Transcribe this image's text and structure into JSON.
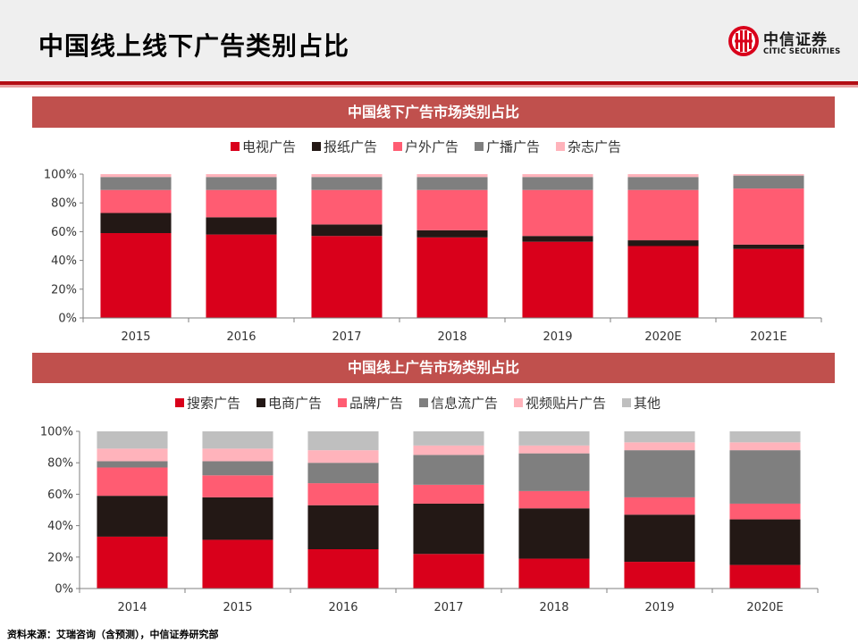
{
  "header": {
    "title": "中国线上线下广告类别占比",
    "logo_name": "中信证券",
    "logo_sub": "CITIC SECURITIES"
  },
  "chart_data": [
    {
      "type": "bar",
      "stacked": true,
      "title": "中国线下广告市场类别占比",
      "legend_placement": "top",
      "categories": [
        "2015",
        "2016",
        "2017",
        "2018",
        "2019",
        "2020E",
        "2021E"
      ],
      "yticks": [
        "0%",
        "20%",
        "40%",
        "60%",
        "80%",
        "100%"
      ],
      "ylim": [
        0,
        100
      ],
      "series": [
        {
          "name": "电视广告",
          "color": "#d9001b",
          "values": [
            59,
            58,
            57,
            56,
            53,
            50,
            48
          ]
        },
        {
          "name": "报纸广告",
          "color": "#231815",
          "values": [
            14,
            12,
            8,
            5,
            4,
            4,
            3
          ]
        },
        {
          "name": "户外广告",
          "color": "#ff5c72",
          "values": [
            16,
            19,
            24,
            28,
            32,
            35,
            39
          ]
        },
        {
          "name": "广播广告",
          "color": "#7f7f7f",
          "values": [
            9,
            9,
            9,
            9,
            9,
            9,
            9
          ]
        },
        {
          "name": "杂志广告",
          "color": "#ffb3bb",
          "values": [
            2,
            2,
            2,
            2,
            2,
            2,
            1
          ]
        }
      ]
    },
    {
      "type": "bar",
      "stacked": true,
      "title": "中国线上广告市场类别占比",
      "legend_placement": "top",
      "categories": [
        "2014",
        "2015",
        "2016",
        "2017",
        "2018",
        "2019",
        "2020E"
      ],
      "yticks": [
        "0%",
        "20%",
        "40%",
        "60%",
        "80%",
        "100%"
      ],
      "ylim": [
        0,
        100
      ],
      "series": [
        {
          "name": "搜索广告",
          "color": "#d9001b",
          "values": [
            33,
            31,
            25,
            22,
            19,
            17,
            15
          ]
        },
        {
          "name": "电商广告",
          "color": "#231815",
          "values": [
            26,
            27,
            28,
            32,
            32,
            30,
            29
          ]
        },
        {
          "name": "品牌广告",
          "color": "#ff5c72",
          "values": [
            18,
            14,
            14,
            12,
            11,
            11,
            10
          ]
        },
        {
          "name": "信息流广告",
          "color": "#7f7f7f",
          "values": [
            4,
            9,
            13,
            19,
            24,
            30,
            34
          ]
        },
        {
          "name": "视频贴片广告",
          "color": "#ffb3bb",
          "values": [
            8,
            8,
            8,
            6,
            5,
            5,
            5
          ]
        },
        {
          "name": "其他",
          "color": "#bfbfbf",
          "values": [
            11,
            11,
            12,
            9,
            9,
            7,
            7
          ]
        }
      ]
    }
  ],
  "footer": {
    "source": "资料来源：艾瑞咨询（含预测），中信证券研究部"
  }
}
